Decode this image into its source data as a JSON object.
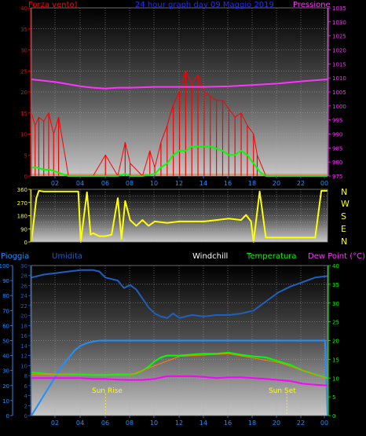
{
  "colors": {
    "background": "#000000",
    "wind": "#ff0000",
    "gust": "#00ff00",
    "pressure": "#ff33ff",
    "direction": "#ffff00",
    "rain": "#1e90ff",
    "humidity": "#1f5fbf",
    "temperature": "#00ff00",
    "dewpoint": "#ff00ff",
    "windchill": "#ff8000",
    "ticks_x": "#1e90ff",
    "sun_marker": "#ffff00",
    "windchill_label": "#ffffff"
  },
  "header": {
    "left_label": "Forza vento)",
    "title": "24 hour graph day  09 Maggio 2019",
    "right_label": "Pressione"
  },
  "direction_letters": [
    "N",
    "W",
    "S",
    "E",
    "N"
  ],
  "bottom_labels": {
    "rain": "Pioggia",
    "humidity": "Umidita",
    "windchill": "Windchill",
    "temperature": "Temperatura",
    "dewpoint": "Dew Point (°C)"
  },
  "sun": {
    "rise_label": "Sun Rise",
    "set_label": "Sun Set",
    "rise_hour": 6.0,
    "set_hour": 20.7
  },
  "chart_data": [
    {
      "type": "line",
      "title": "24 hour graph day  09 Maggio 2019",
      "x_ticks": [
        "02",
        "04",
        "06",
        "08",
        "10",
        "12",
        "14",
        "16",
        "18",
        "20",
        "22",
        "00"
      ],
      "xlim": [
        0,
        24
      ],
      "y_left": {
        "label": "Forza vento)",
        "ticks": [
          0,
          5,
          10,
          15,
          20,
          25,
          30,
          35,
          40
        ],
        "ylim": [
          0,
          40
        ]
      },
      "y_right": {
        "label": "Pressione",
        "ticks": [
          975,
          980,
          985,
          990,
          995,
          1000,
          1005,
          1010,
          1015,
          1020,
          1025,
          1030,
          1035
        ],
        "ylim": [
          975,
          1035
        ]
      },
      "grid": true,
      "series": [
        {
          "name": "Forza vento)",
          "axis": "left",
          "kind": "wind",
          "x": [
            0,
            0.3,
            0.6,
            1.0,
            1.4,
            1.8,
            2.2,
            3.0,
            4.0,
            5.0,
            6.0,
            7.0,
            7.6,
            8.0,
            9.0,
            9.6,
            10.0,
            10.5,
            11.0,
            11.5,
            12.0,
            12.5,
            13.0,
            13.5,
            14.0,
            14.5,
            15.0,
            15.5,
            16.0,
            16.5,
            17.0,
            17.5,
            18.0,
            18.3,
            19.0,
            20.0,
            21.0,
            22.0,
            23.0,
            24.0
          ],
          "y": [
            15,
            12,
            14,
            13,
            15,
            10,
            14,
            0,
            0,
            0,
            5,
            0,
            8,
            3,
            0,
            6,
            2,
            8,
            12,
            17,
            20,
            25,
            22,
            24,
            20,
            19,
            18,
            18,
            16,
            14,
            15,
            12,
            10,
            5,
            0,
            0,
            0,
            0,
            0,
            0
          ]
        },
        {
          "name": "Gust",
          "axis": "left",
          "kind": "gust",
          "x": [
            0,
            0.5,
            1.0,
            1.5,
            2.0,
            2.5,
            3.0,
            4.0,
            5.0,
            6.0,
            7.0,
            7.6,
            8.0,
            9.0,
            10.0,
            10.5,
            11.0,
            11.5,
            12.0,
            12.5,
            13.0,
            13.5,
            14.0,
            14.5,
            15.0,
            15.5,
            16.0,
            16.5,
            17.0,
            17.5,
            18.0,
            18.5,
            19.0,
            20.0,
            22.0,
            24.0
          ],
          "y": [
            2,
            2,
            1.5,
            1.5,
            1,
            0.5,
            0,
            0,
            0,
            0,
            0,
            0.5,
            0,
            0,
            0.5,
            2,
            3,
            5,
            6,
            6,
            7,
            7,
            7,
            7,
            6.5,
            6,
            5,
            5,
            6,
            5,
            3,
            1,
            0,
            0,
            0,
            0
          ]
        },
        {
          "name": "Pressione",
          "axis": "right",
          "kind": "pressure",
          "x": [
            0,
            2,
            4,
            5,
            6,
            7,
            8,
            10,
            12,
            14,
            16,
            18,
            20,
            22,
            24
          ],
          "y": [
            1009.5,
            1008.5,
            1007.0,
            1006.5,
            1006.2,
            1006.5,
            1006.5,
            1006.8,
            1006.8,
            1006.8,
            1007.0,
            1007.5,
            1008.0,
            1008.8,
            1009.5
          ]
        }
      ]
    },
    {
      "type": "line",
      "title": "",
      "x_ticks": [
        "02",
        "04",
        "06",
        "08",
        "10",
        "12",
        "14",
        "16",
        "18",
        "20",
        "22",
        "00"
      ],
      "xlim": [
        0,
        24
      ],
      "y_left": {
        "label": "",
        "ticks": [
          0,
          90,
          180,
          270,
          360
        ],
        "ylim": [
          0,
          360
        ]
      },
      "y_right_letters": [
        "N",
        "W",
        "S",
        "E",
        "N"
      ],
      "grid": true,
      "series": [
        {
          "name": "Direction",
          "axis": "left",
          "kind": "direction",
          "x": [
            0,
            0.4,
            0.6,
            1.0,
            2.0,
            3.0,
            3.8,
            4.0,
            4.5,
            4.8,
            5.0,
            5.5,
            6.0,
            6.5,
            7.0,
            7.3,
            7.6,
            8.0,
            8.5,
            9.0,
            9.5,
            10.0,
            11.0,
            12.0,
            13.0,
            14.0,
            15.0,
            16.0,
            17.0,
            17.4,
            17.8,
            18.0,
            18.5,
            19.0,
            20.0,
            21.0,
            22.0,
            23.0,
            23.5,
            24.0
          ],
          "y": [
            0,
            300,
            350,
            345,
            345,
            345,
            345,
            0,
            340,
            50,
            60,
            40,
            40,
            50,
            300,
            20,
            280,
            150,
            110,
            150,
            110,
            140,
            130,
            140,
            140,
            140,
            150,
            160,
            150,
            185,
            140,
            0,
            345,
            30,
            30,
            30,
            30,
            30,
            350,
            350
          ]
        }
      ]
    },
    {
      "type": "line",
      "title": "",
      "x_ticks": [
        "02",
        "04",
        "06",
        "08",
        "10",
        "12",
        "14",
        "16",
        "18",
        "20",
        "22",
        "00"
      ],
      "xlim": [
        0,
        24
      ],
      "y_outer_left": {
        "label": "Pioggia",
        "ticks": [
          0,
          10,
          20,
          30,
          40,
          50,
          60,
          70,
          80,
          90,
          100
        ],
        "ylim": [
          0,
          100
        ]
      },
      "y_left": {
        "label": "Umidita",
        "ticks": [
          0,
          2,
          4,
          6,
          8,
          10,
          12,
          14,
          16,
          18,
          20,
          22,
          24,
          26,
          28,
          30
        ],
        "ylim": [
          0,
          30
        ]
      },
      "y_right": {
        "label": "Dew Point (°C)",
        "ticks": [
          0,
          5,
          10,
          15,
          20,
          25,
          30,
          35,
          40
        ],
        "ylim": [
          0,
          40
        ]
      },
      "annotations": [
        {
          "text": "Sun Rise",
          "x": 6.0
        },
        {
          "text": "Sun Set",
          "x": 20.7
        }
      ],
      "grid": true,
      "series": [
        {
          "name": "Umidita",
          "axis": "outer_left",
          "kind": "humidity",
          "x": [
            0,
            1,
            2,
            3,
            4,
            5,
            5.5,
            6,
            7,
            7.5,
            8,
            8.5,
            9,
            9.5,
            10,
            10.5,
            11,
            11.5,
            12,
            13,
            14,
            15,
            16,
            17,
            18,
            19,
            20,
            21,
            22,
            23,
            24
          ],
          "y": [
            92,
            94,
            95,
            96,
            97,
            97,
            96,
            92,
            90,
            85,
            87,
            84,
            78,
            72,
            68,
            66,
            65,
            68,
            65,
            67,
            66,
            67,
            67,
            68,
            70,
            76,
            82,
            86,
            89,
            92,
            93
          ]
        },
        {
          "name": "Pioggia",
          "axis": "left",
          "kind": "rain",
          "x": [
            0,
            0.5,
            1,
            1.5,
            2,
            2.5,
            3,
            3.5,
            4,
            4.5,
            5,
            5.5,
            6,
            7,
            8,
            10,
            12,
            14,
            16,
            18,
            20,
            22,
            23.8,
            24
          ],
          "y": [
            0,
            2,
            4,
            6,
            8,
            10,
            11.5,
            13,
            14,
            14.5,
            14.8,
            15,
            15,
            15,
            15,
            15,
            15,
            15,
            15,
            15,
            15,
            15,
            15,
            0
          ]
        },
        {
          "name": "Temperatura",
          "axis": "right",
          "kind": "temperature",
          "x": [
            0,
            1,
            2,
            3,
            4,
            5,
            6,
            7,
            8,
            8.5,
            9,
            9.5,
            10,
            10.5,
            11,
            12,
            13,
            14,
            15,
            16,
            17,
            18,
            19,
            20,
            21,
            22,
            23,
            24
          ],
          "y": [
            11.5,
            11.2,
            11.0,
            11.0,
            11.0,
            10.8,
            10.8,
            11.0,
            11.0,
            11.2,
            12,
            13,
            14.5,
            15.5,
            16,
            16,
            16.3,
            16.5,
            16.5,
            16.8,
            16.2,
            15.8,
            15.5,
            14.5,
            13.5,
            12,
            11,
            10
          ]
        },
        {
          "name": "Dew Point (°C)",
          "axis": "right",
          "kind": "dewpoint",
          "x": [
            0,
            1,
            2,
            3,
            4,
            5,
            6,
            7,
            8,
            9,
            10,
            11,
            12,
            13,
            14,
            15,
            16,
            17,
            18,
            19,
            20,
            21,
            22,
            23,
            24
          ],
          "y": [
            10,
            10,
            10,
            10,
            10,
            9.8,
            9.8,
            9.6,
            9.5,
            9.5,
            9.8,
            10.5,
            10.5,
            10.5,
            10.3,
            10,
            10.2,
            10.2,
            10,
            9.8,
            9.5,
            9.2,
            8.5,
            8.2,
            8
          ]
        },
        {
          "name": "Windchill",
          "axis": "right",
          "kind": "windchill",
          "x": [
            0,
            4,
            8,
            12,
            16,
            20,
            24
          ],
          "y": [
            11,
            10.8,
            10.8,
            15.8,
            16.5,
            14.2,
            9.8
          ]
        }
      ]
    }
  ]
}
